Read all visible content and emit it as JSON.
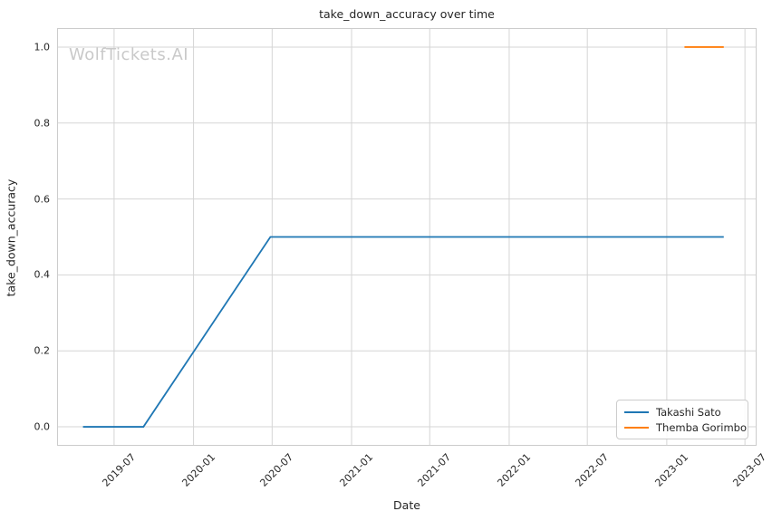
{
  "title": "take_down_accuracy over time",
  "watermark": "WolfTickets.AI",
  "chart_data": {
    "type": "line",
    "title": "take_down_accuracy over time",
    "xlabel": "Date",
    "ylabel": "take_down_accuracy",
    "xlim": [
      "2019-02-19",
      "2023-07-28"
    ],
    "ylim": [
      -0.05,
      1.05
    ],
    "grid": true,
    "grid_color": "#d5d5d5",
    "spine_color": "#cccccc",
    "background": "#ffffff",
    "legend_position": "lower right",
    "xticks": [
      {
        "date": "2019-07-01",
        "label": "2019-07"
      },
      {
        "date": "2020-01-01",
        "label": "2020-01"
      },
      {
        "date": "2020-07-01",
        "label": "2020-07"
      },
      {
        "date": "2021-01-01",
        "label": "2021-01"
      },
      {
        "date": "2021-07-01",
        "label": "2021-07"
      },
      {
        "date": "2022-01-01",
        "label": "2022-01"
      },
      {
        "date": "2022-07-01",
        "label": "2022-07"
      },
      {
        "date": "2023-01-01",
        "label": "2023-01"
      },
      {
        "date": "2023-07-01",
        "label": "2023-07"
      }
    ],
    "yticks": [
      {
        "value": 0.0,
        "label": "0.0"
      },
      {
        "value": 0.2,
        "label": "0.2"
      },
      {
        "value": 0.4,
        "label": "0.4"
      },
      {
        "value": 0.6,
        "label": "0.6"
      },
      {
        "value": 0.8,
        "label": "0.8"
      },
      {
        "value": 1.0,
        "label": "1.0"
      }
    ],
    "series": [
      {
        "name": "Takashi Sato",
        "color": "#1f77b4",
        "points": [
          [
            "2019-04-20",
            0.0
          ],
          [
            "2019-09-07",
            0.0
          ],
          [
            "2020-06-27",
            0.5
          ],
          [
            "2023-05-13",
            0.5
          ]
        ]
      },
      {
        "name": "Themba Gorimbo",
        "color": "#ff7f0e",
        "points": [
          [
            "2023-02-11",
            1.0
          ],
          [
            "2023-05-13",
            1.0
          ]
        ]
      }
    ]
  }
}
